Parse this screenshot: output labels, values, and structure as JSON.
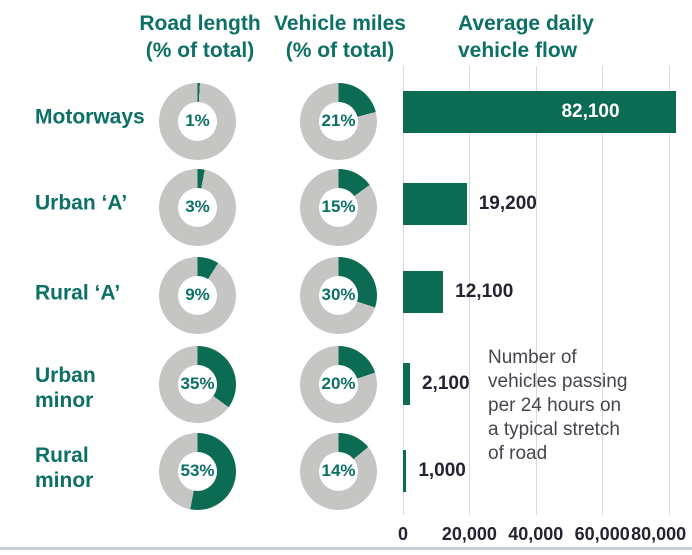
{
  "headers": {
    "road_length": "Road length\n(% of total)",
    "vehicle_miles": "Vehicle miles\n(% of total)",
    "flow": "Average daily\nvehicle flow"
  },
  "rows": [
    {
      "label": "Motorways",
      "road_length_pct": 1,
      "road_length_pct_label": "1%",
      "vehicle_miles_pct": 21,
      "vehicle_miles_pct_label": "21%",
      "flow_value": 82100,
      "flow_label": "82,100"
    },
    {
      "label": "Urban ‘A’",
      "road_length_pct": 3,
      "road_length_pct_label": "3%",
      "vehicle_miles_pct": 15,
      "vehicle_miles_pct_label": "15%",
      "flow_value": 19200,
      "flow_label": "19,200"
    },
    {
      "label": "Rural ‘A’",
      "road_length_pct": 9,
      "road_length_pct_label": "9%",
      "vehicle_miles_pct": 30,
      "vehicle_miles_pct_label": "30%",
      "flow_value": 12100,
      "flow_label": "12,100"
    },
    {
      "label": "Urban\nminor",
      "road_length_pct": 35,
      "road_length_pct_label": "35%",
      "vehicle_miles_pct": 20,
      "vehicle_miles_pct_label": "20%",
      "flow_value": 2100,
      "flow_label": "2,100"
    },
    {
      "label": "Rural\nminor",
      "road_length_pct": 53,
      "road_length_pct_label": "53%",
      "vehicle_miles_pct": 14,
      "vehicle_miles_pct_label": "14%",
      "flow_value": 1000,
      "flow_label": "1,000"
    }
  ],
  "x_axis": {
    "ticks": [
      {
        "value": 0,
        "label": "0"
      },
      {
        "value": 20000,
        "label": "20,000"
      },
      {
        "value": 40000,
        "label": "40,000"
      },
      {
        "value": 60000,
        "label": "60,000"
      },
      {
        "value": 80000,
        "label": "80,000"
      }
    ]
  },
  "annotation": {
    "text": "Number of\nvehicles passing\nper 24 hours on\na typical stretch\nof road"
  },
  "colors": {
    "teal_text": "#0c7066",
    "bar_green": "#0c6b53",
    "donut_gray": "#c5c5c3",
    "dark_label": "#232334",
    "gridline": "#dadada",
    "bar_inner_label": "#ffffff",
    "bottom_rule": "#c7ced4"
  },
  "chart_data": [
    {
      "type": "pie",
      "subtype": "donut-series",
      "title": "Road length (% of total)",
      "categories": [
        "Motorways",
        "Urban ‘A’",
        "Rural ‘A’",
        "Urban minor",
        "Rural minor"
      ],
      "values": [
        1,
        3,
        9,
        35,
        53
      ],
      "unit": "%",
      "segment_color": "#0c6b53",
      "remainder_color": "#c5c5c3"
    },
    {
      "type": "pie",
      "subtype": "donut-series",
      "title": "Vehicle miles (% of total)",
      "categories": [
        "Motorways",
        "Urban ‘A’",
        "Rural ‘A’",
        "Urban minor",
        "Rural minor"
      ],
      "values": [
        21,
        15,
        30,
        20,
        14
      ],
      "unit": "%",
      "segment_color": "#0c6b53",
      "remainder_color": "#c5c5c3"
    },
    {
      "type": "bar",
      "orientation": "horizontal",
      "title": "Average daily vehicle flow",
      "categories": [
        "Motorways",
        "Urban ‘A’",
        "Rural ‘A’",
        "Urban minor",
        "Rural minor"
      ],
      "values": [
        82100,
        19200,
        12100,
        2100,
        1000
      ],
      "value_labels": [
        "82,100",
        "19,200",
        "12,100",
        "2,100",
        "1,000"
      ],
      "xlabel": "",
      "ylabel": "",
      "xlim": [
        0,
        80000
      ],
      "x_tick_labels": [
        "0",
        "20,000",
        "40,000",
        "60,000",
        "80,000"
      ],
      "grid": true,
      "annotation": "Number of vehicles passing per 24 hours on a typical stretch of road"
    }
  ]
}
